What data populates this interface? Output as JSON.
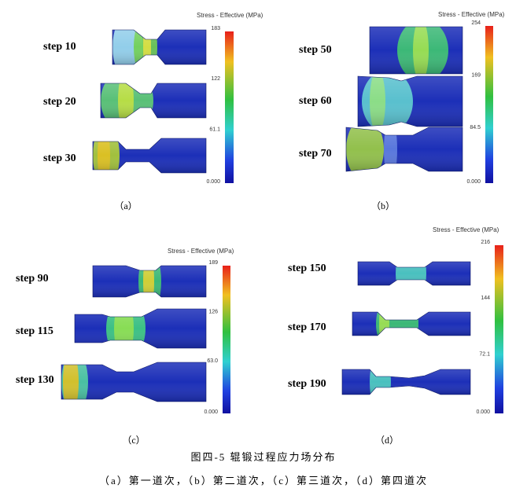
{
  "panels": [
    {
      "colorbar": {
        "title": "Stress - Effective (MPa)",
        "ticks": [
          "183",
          "122",
          "61.1",
          "0.000"
        ]
      },
      "steps": [
        "step 10",
        "step 20",
        "step 30"
      ],
      "label": "（a）"
    },
    {
      "colorbar": {
        "title": "Stress - Effective (MPa)",
        "ticks": [
          "254",
          "169",
          "84.5",
          "0.000"
        ]
      },
      "steps": [
        "step 50",
        "step 60",
        "step 70"
      ],
      "label": "（b）"
    },
    {
      "colorbar": {
        "title": "Stress - Effective (MPa)",
        "ticks": [
          "189",
          "126",
          "63.0",
          "0.000"
        ]
      },
      "steps": [
        "step 90",
        "step 115",
        "step 130"
      ],
      "label": "（c）"
    },
    {
      "colorbar": {
        "title": "Stress - Effective (MPa)",
        "ticks": [
          "216",
          "144",
          "72.1",
          "0.000"
        ]
      },
      "steps": [
        "step 150",
        "step 170",
        "step 190"
      ],
      "label": "（d）"
    }
  ],
  "caption": {
    "title": "图四-5 辊锻过程应力场分布",
    "subtitle": "（a）第一道次，（b）第二道次，（c）第三道次，（d）第四道次"
  }
}
